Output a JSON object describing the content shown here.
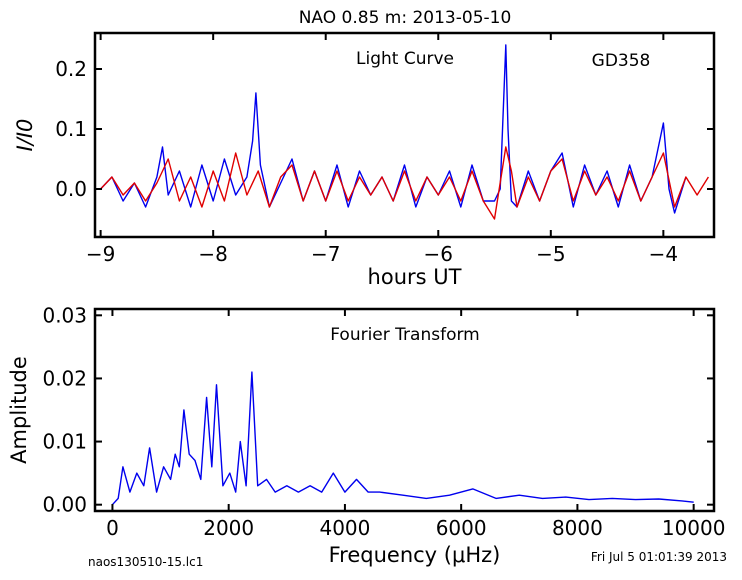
{
  "title": "NAO 0.85 m:  2013-05-10",
  "footer": {
    "filename": "naos130510-15.lc1",
    "timestamp": "Fri Jul  5 01:01:39 2013"
  },
  "colors": {
    "observed": "#0000ee",
    "model": "#e00000",
    "axes": "#000000"
  },
  "chart_data": [
    {
      "type": "line",
      "annotations": [
        "Light Curve",
        "GD358"
      ],
      "xlabel": "hours UT",
      "ylabel": "I/I0",
      "xlim": [
        -9.05,
        -3.55
      ],
      "ylim": [
        -0.08,
        0.26
      ],
      "xticks": [
        -9,
        -8,
        -7,
        -6,
        -5,
        -4
      ],
      "xticklabels": [
        "−9",
        "−8",
        "−7",
        "−6",
        "−5",
        "−4"
      ],
      "yticks": [
        0.0,
        0.1,
        0.2
      ],
      "yticklabels": [
        "0.0",
        "0.1",
        "0.2"
      ],
      "series": [
        {
          "color": "#0000ee",
          "x": [
            -9.0,
            -8.9,
            -8.8,
            -8.7,
            -8.6,
            -8.5,
            -8.45,
            -8.4,
            -8.3,
            -8.2,
            -8.1,
            -8.0,
            -7.9,
            -7.8,
            -7.7,
            -7.65,
            -7.62,
            -7.58,
            -7.5,
            -7.4,
            -7.3,
            -7.2,
            -7.1,
            -7.0,
            -6.9,
            -6.8,
            -6.7,
            -6.6,
            -6.5,
            -6.4,
            -6.3,
            -6.2,
            -6.1,
            -6.0,
            -5.9,
            -5.8,
            -5.7,
            -5.6,
            -5.5,
            -5.45,
            -5.4,
            -5.38,
            -5.35,
            -5.3,
            -5.2,
            -5.1,
            -5.0,
            -4.9,
            -4.8,
            -4.7,
            -4.6,
            -4.5,
            -4.4,
            -4.3,
            -4.2,
            -4.1,
            -4.0,
            -3.95,
            -3.9,
            -3.8
          ],
          "y": [
            0.0,
            0.02,
            -0.02,
            0.01,
            -0.03,
            0.02,
            0.07,
            -0.01,
            0.03,
            -0.03,
            0.04,
            -0.02,
            0.05,
            -0.01,
            0.02,
            0.08,
            0.16,
            0.04,
            -0.03,
            0.01,
            0.05,
            -0.02,
            0.03,
            -0.02,
            0.04,
            -0.03,
            0.03,
            -0.01,
            0.02,
            -0.02,
            0.04,
            -0.03,
            0.02,
            -0.01,
            0.03,
            -0.03,
            0.04,
            -0.02,
            -0.02,
            0.0,
            0.24,
            0.1,
            -0.02,
            -0.03,
            0.03,
            -0.02,
            0.03,
            0.06,
            -0.03,
            0.04,
            -0.01,
            0.03,
            -0.03,
            0.04,
            -0.02,
            0.02,
            0.11,
            0.0,
            -0.04,
            0.02
          ]
        },
        {
          "color": "#e00000",
          "x": [
            -9.0,
            -8.9,
            -8.8,
            -8.7,
            -8.6,
            -8.5,
            -8.4,
            -8.3,
            -8.2,
            -8.1,
            -8.0,
            -7.9,
            -7.8,
            -7.7,
            -7.6,
            -7.5,
            -7.4,
            -7.3,
            -7.2,
            -7.1,
            -7.0,
            -6.9,
            -6.8,
            -6.7,
            -6.6,
            -6.5,
            -6.4,
            -6.3,
            -6.2,
            -6.1,
            -6.0,
            -5.9,
            -5.8,
            -5.7,
            -5.6,
            -5.5,
            -5.4,
            -5.35,
            -5.3,
            -5.2,
            -5.1,
            -5.0,
            -4.9,
            -4.8,
            -4.7,
            -4.6,
            -4.5,
            -4.4,
            -4.3,
            -4.2,
            -4.1,
            -4.0,
            -3.9,
            -3.8,
            -3.7,
            -3.6
          ],
          "y": [
            0.0,
            0.02,
            -0.01,
            0.01,
            -0.02,
            0.01,
            0.05,
            -0.02,
            0.02,
            -0.03,
            0.03,
            -0.02,
            0.06,
            -0.01,
            0.03,
            -0.03,
            0.02,
            0.04,
            -0.02,
            0.03,
            -0.02,
            0.03,
            -0.02,
            0.02,
            -0.01,
            0.02,
            -0.02,
            0.03,
            -0.02,
            0.02,
            -0.01,
            0.02,
            -0.02,
            0.03,
            -0.02,
            -0.05,
            0.07,
            0.03,
            -0.03,
            0.02,
            -0.02,
            0.03,
            0.05,
            -0.02,
            0.03,
            -0.01,
            0.02,
            -0.02,
            0.03,
            -0.02,
            0.02,
            0.06,
            -0.03,
            0.02,
            -0.01,
            0.02
          ]
        }
      ]
    },
    {
      "type": "line",
      "annotations": [
        "Fourier Transform"
      ],
      "xlabel": "Frequency (μHz)",
      "ylabel": "Amplitude",
      "xlim": [
        -300,
        10350
      ],
      "ylim": [
        -0.001,
        0.031
      ],
      "xticks": [
        0,
        2000,
        4000,
        6000,
        8000,
        10000
      ],
      "xticklabels": [
        "0",
        "2000",
        "4000",
        "6000",
        "8000",
        "10000"
      ],
      "yticks": [
        0.0,
        0.01,
        0.02,
        0.03
      ],
      "yticklabels": [
        "0.00",
        "0.01",
        "0.02",
        "0.03"
      ],
      "series": [
        {
          "color": "#0000ee",
          "x": [
            0,
            100,
            180,
            300,
            420,
            540,
            640,
            760,
            880,
            1000,
            1080,
            1150,
            1230,
            1320,
            1420,
            1520,
            1620,
            1710,
            1790,
            1900,
            2020,
            2120,
            2200,
            2300,
            2400,
            2500,
            2650,
            2800,
            3000,
            3200,
            3400,
            3600,
            3800,
            4000,
            4200,
            4400,
            4600,
            5000,
            5400,
            5800,
            6200,
            6600,
            7000,
            7400,
            7800,
            8200,
            8600,
            9000,
            9400,
            9800,
            10000
          ],
          "y": [
            0.0,
            0.001,
            0.006,
            0.002,
            0.005,
            0.003,
            0.009,
            0.002,
            0.006,
            0.004,
            0.008,
            0.006,
            0.015,
            0.008,
            0.007,
            0.004,
            0.017,
            0.006,
            0.019,
            0.003,
            0.005,
            0.002,
            0.01,
            0.003,
            0.021,
            0.003,
            0.004,
            0.002,
            0.003,
            0.002,
            0.003,
            0.002,
            0.005,
            0.002,
            0.004,
            0.002,
            0.002,
            0.0015,
            0.001,
            0.0015,
            0.0025,
            0.001,
            0.0015,
            0.001,
            0.0012,
            0.0008,
            0.001,
            0.0008,
            0.0009,
            0.0006,
            0.0004
          ]
        }
      ]
    }
  ]
}
